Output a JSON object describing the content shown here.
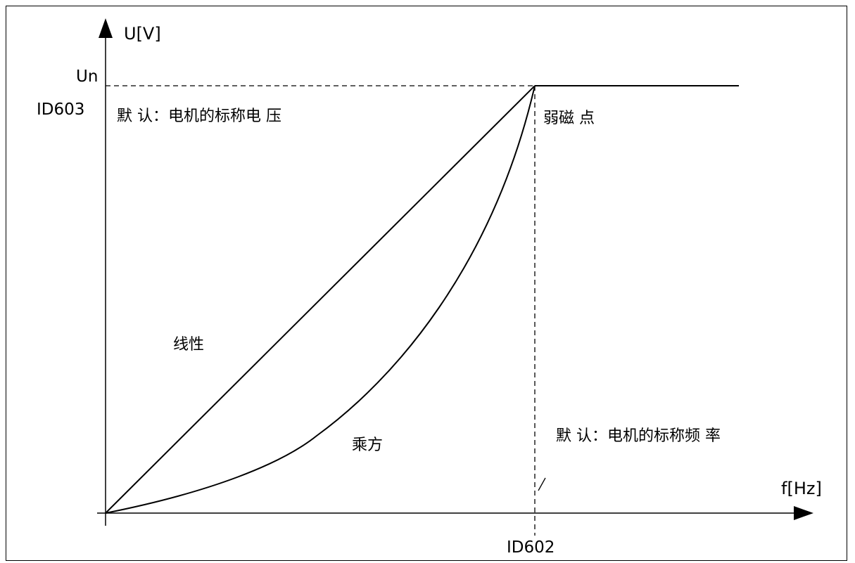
{
  "axes": {
    "y_label": "U[V]",
    "x_label": "f[Hz]",
    "y_tick_un": "Un",
    "y_tick_id": "ID603",
    "x_tick_id": "ID602"
  },
  "annotations": {
    "default_voltage": "默 认：电机的标称电 压",
    "field_weakening_point": "弱磁 点",
    "linear": "线性",
    "squared": "乘方",
    "default_frequency": "默 认：电机的标称频 率"
  },
  "colors": {
    "line": "#000000",
    "background": "#ffffff"
  }
}
